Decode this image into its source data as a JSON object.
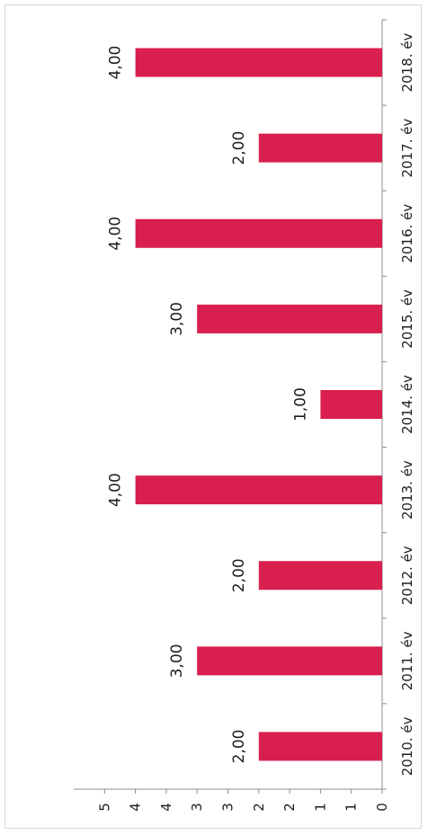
{
  "chart_data": {
    "type": "bar",
    "orientation": "horizontal-bars, rotated 90° (categories along right side)",
    "categories": [
      "2010. év",
      "2011. év",
      "2012. év",
      "2013. év",
      "2014. év",
      "2015. év",
      "2016. év",
      "2017. év",
      "2018. év"
    ],
    "values": [
      2,
      3,
      2,
      4,
      1,
      3,
      4,
      2,
      4
    ],
    "data_labels": [
      "2,00",
      "3,00",
      "2,00",
      "4,00",
      "1,00",
      "3,00",
      "4,00",
      "2,00",
      "4,00"
    ],
    "value_axis": {
      "range": [
        0,
        5
      ],
      "tick_values": [
        0,
        0.5,
        1,
        1.5,
        2,
        2.5,
        3,
        3.5,
        4,
        4.5
      ],
      "tick_labels": [
        "0",
        "1",
        "1",
        "2",
        "2",
        "3",
        "3",
        "4",
        "4",
        "5"
      ]
    },
    "bar_color": "#d81f4d",
    "axis_color": "#8c8c8c",
    "title": "",
    "xlabel": "",
    "ylabel": "",
    "grid": false,
    "legend": "none"
  }
}
